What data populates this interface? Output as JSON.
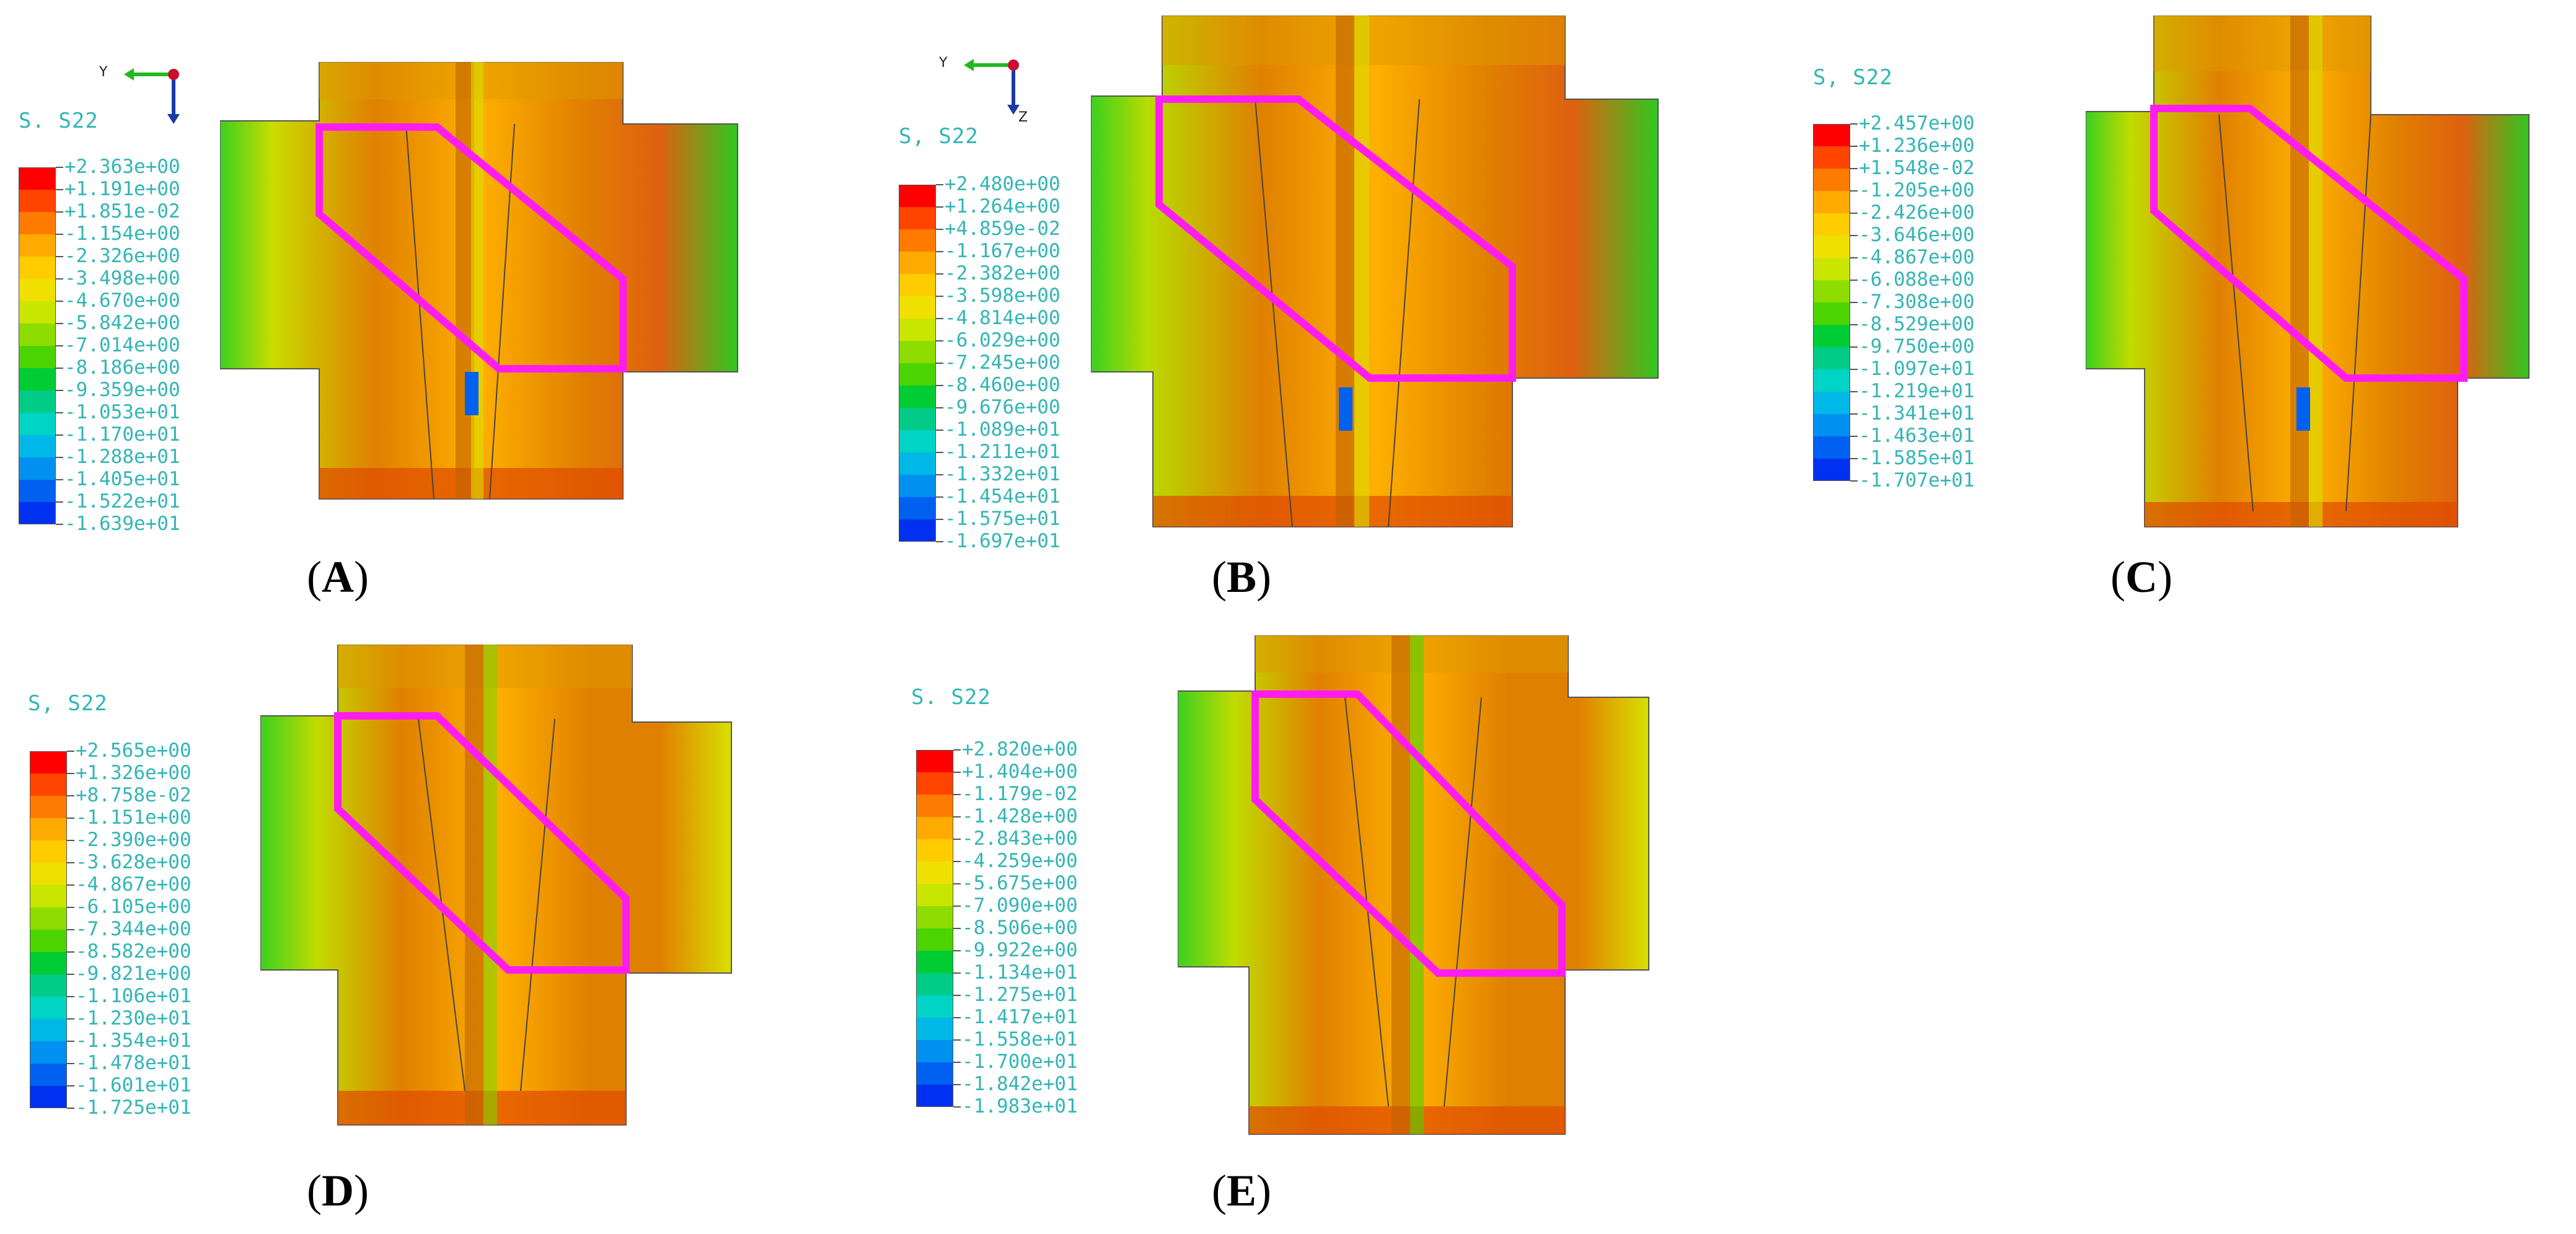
{
  "colors": {
    "legend": [
      "#ff0000",
      "#ff4400",
      "#ff7a00",
      "#ffaa00",
      "#ffcc00",
      "#f0e000",
      "#c8e600",
      "#8edc00",
      "#4cd400",
      "#00cc33",
      "#00cc88",
      "#00d4c4",
      "#00b8e8",
      "#0090f0",
      "#0060f0",
      "#0030f0",
      "#0000ff"
    ],
    "text": "#33b5b5",
    "outline": "#ff1cf0",
    "triad_y": "#22b822",
    "triad_z": "#1a3aa8"
  },
  "panels": [
    {
      "id": "A",
      "caption_letter": "A",
      "title": "S. S22",
      "triad": {
        "y": "Y",
        "z": ""
      },
      "values": [
        "+2.363e+00",
        "+1.191e+00",
        "+1.851e-02",
        "-1.154e+00",
        "-2.326e+00",
        "-3.498e+00",
        "-4.670e+00",
        "-5.842e+00",
        "-7.014e+00",
        "-8.186e+00",
        "-9.359e+00",
        "-1.053e+01",
        "-1.170e+01",
        "-1.288e+01",
        "-1.405e+01",
        "-1.522e+01",
        "-1.639e+01"
      ]
    },
    {
      "id": "B",
      "caption_letter": "B",
      "title": "S, S22",
      "triad": {
        "y": "Y",
        "z": "Z"
      },
      "values": [
        "+2.480e+00",
        "+1.264e+00",
        "+4.859e-02",
        "-1.167e+00",
        "-2.382e+00",
        "-3.598e+00",
        "-4.814e+00",
        "-6.029e+00",
        "-7.245e+00",
        "-8.460e+00",
        "-9.676e+00",
        "-1.089e+01",
        "-1.211e+01",
        "-1.332e+01",
        "-1.454e+01",
        "-1.575e+01",
        "-1.697e+01"
      ]
    },
    {
      "id": "C",
      "caption_letter": "C",
      "title": "S, S22",
      "values": [
        "+2.457e+00",
        "+1.236e+00",
        "+1.548e-02",
        "-1.205e+00",
        "-2.426e+00",
        "-3.646e+00",
        "-4.867e+00",
        "-6.088e+00",
        "-7.308e+00",
        "-8.529e+00",
        "-9.750e+00",
        "-1.097e+01",
        "-1.219e+01",
        "-1.341e+01",
        "-1.463e+01",
        "-1.585e+01",
        "-1.707e+01"
      ]
    },
    {
      "id": "D",
      "caption_letter": "D",
      "title": "S, S22",
      "values": [
        "+2.565e+00",
        "+1.326e+00",
        "+8.758e-02",
        "-1.151e+00",
        "-2.390e+00",
        "-3.628e+00",
        "-4.867e+00",
        "-6.105e+00",
        "-7.344e+00",
        "-8.582e+00",
        "-9.821e+00",
        "-1.106e+01",
        "-1.230e+01",
        "-1.354e+01",
        "-1.478e+01",
        "-1.601e+01",
        "-1.725e+01"
      ]
    },
    {
      "id": "E",
      "caption_letter": "E",
      "title": "S. S22",
      "values": [
        "+2.820e+00",
        "+1.404e+00",
        "-1.179e-02",
        "-1.428e+00",
        "-2.843e+00",
        "-4.259e+00",
        "-5.675e+00",
        "-7.090e+00",
        "-8.506e+00",
        "-9.922e+00",
        "-1.134e+01",
        "-1.275e+01",
        "-1.417e+01",
        "-1.558e+01",
        "-1.700e+01",
        "-1.842e+01",
        "-1.983e+01"
      ]
    }
  ]
}
